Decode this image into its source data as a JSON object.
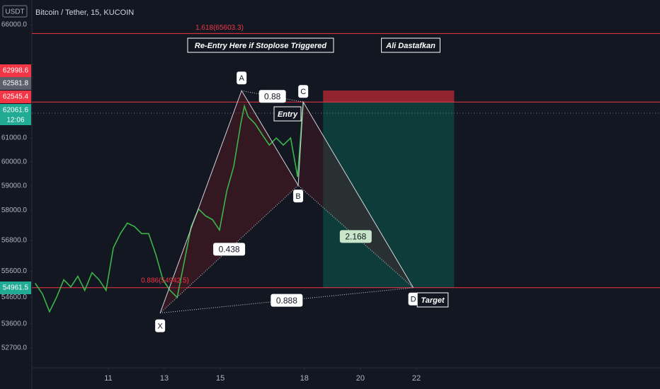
{
  "chart_data": {
    "type": "line",
    "title": "Bitcoin / Tether, 15, KUCOIN",
    "currency": "USDT",
    "x": [
      8.39,
      8.65,
      8.9,
      9.15,
      9.41,
      9.66,
      9.91,
      10.16,
      10.42,
      10.67,
      10.92,
      11.18,
      11.43,
      11.68,
      11.94,
      12.19,
      12.44,
      12.7,
      12.95,
      13.2,
      13.46,
      13.71,
      13.96,
      14.22,
      14.47,
      14.72,
      14.97,
      15.23,
      15.48,
      15.73,
      15.86,
      15.99,
      16.24,
      16.49,
      16.75,
      17.0,
      17.25,
      17.51,
      17.76,
      17.89,
      17.96
    ],
    "series": [
      {
        "color": "#3bb54a",
        "values": [
          55130,
          54720,
          54050,
          54590,
          55265,
          54990,
          55400,
          54860,
          55540,
          55265,
          54860,
          56510,
          57070,
          57490,
          57350,
          57070,
          57070,
          56230,
          55265,
          54860,
          54590,
          55950,
          57350,
          58060,
          57780,
          57630,
          57210,
          58780,
          59810,
          61610,
          62370,
          61910,
          61610,
          61150,
          60700,
          61000,
          60700,
          61000,
          59370,
          61450,
          62520
        ]
      }
    ],
    "xlim": [
      8.27,
      30.7
    ],
    "xticks": [
      11,
      13,
      15,
      18,
      20,
      22
    ],
    "ylim": [
      51980,
      67150
    ],
    "log_scale": true,
    "yticks": [
      {
        "value": 52700,
        "label": "52700.0"
      },
      {
        "value": 53600,
        "label": "53600.0"
      },
      {
        "value": 54600,
        "label": "54600.0"
      },
      {
        "value": 55600,
        "label": "55600.0"
      },
      {
        "value": 56800,
        "label": "56800.0"
      },
      {
        "value": 58000,
        "label": "58000.0"
      },
      {
        "value": 59000,
        "label": "59000.0"
      },
      {
        "value": 60000,
        "label": "60000.0"
      },
      {
        "value": 61000,
        "label": "61000.0"
      },
      {
        "value": 66000,
        "label": "66000.0"
      }
    ],
    "levels": [
      {
        "value": 65603.3,
        "color": "#f23645",
        "label": "1.618(65603.3)"
      },
      {
        "value": 62545.4,
        "color": "#f23645"
      },
      {
        "value": 62061.6,
        "color": "#787b86",
        "dashed": true
      },
      {
        "value": 54961.5,
        "color": "#f23645"
      }
    ],
    "price_tags": [
      {
        "text": "62998.6",
        "color": "#f23645"
      },
      {
        "text": "62581.8",
        "color": "#5d606b"
      },
      {
        "text": "62545.4",
        "color": "#f23645"
      },
      {
        "text": "62061.6",
        "color": "#22ab94"
      },
      {
        "text": "54961.5",
        "color": "#22ab94"
      }
    ],
    "countdown": "12:06",
    "position": {
      "x0": 18.67,
      "x1": 23.35,
      "stop": 63050,
      "entry": 62545.4,
      "target": 54961.5
    },
    "pattern": {
      "points": [
        {
          "label": "X",
          "x": 12.85,
          "y": 54000
        },
        {
          "label": "A",
          "x": 15.76,
          "y": 63040
        },
        {
          "label": "B",
          "x": 17.78,
          "y": 59020
        },
        {
          "label": "C",
          "x": 17.96,
          "y": 62545.4
        },
        {
          "label": "D",
          "x": 21.89,
          "y": 54961.5
        }
      ],
      "ratios": [
        {
          "label": "0.88"
        },
        {
          "label": "0.438"
        },
        {
          "label": "0.888"
        },
        {
          "label": "2.168"
        }
      ]
    },
    "annotations": [
      {
        "text": "Re-Entry Here if Stoplose Triggered"
      },
      {
        "text": "Ali Dastafkan"
      },
      {
        "text": "Entry"
      },
      {
        "text": "Target"
      },
      {
        "text": "0.886(54942.5)"
      }
    ]
  }
}
